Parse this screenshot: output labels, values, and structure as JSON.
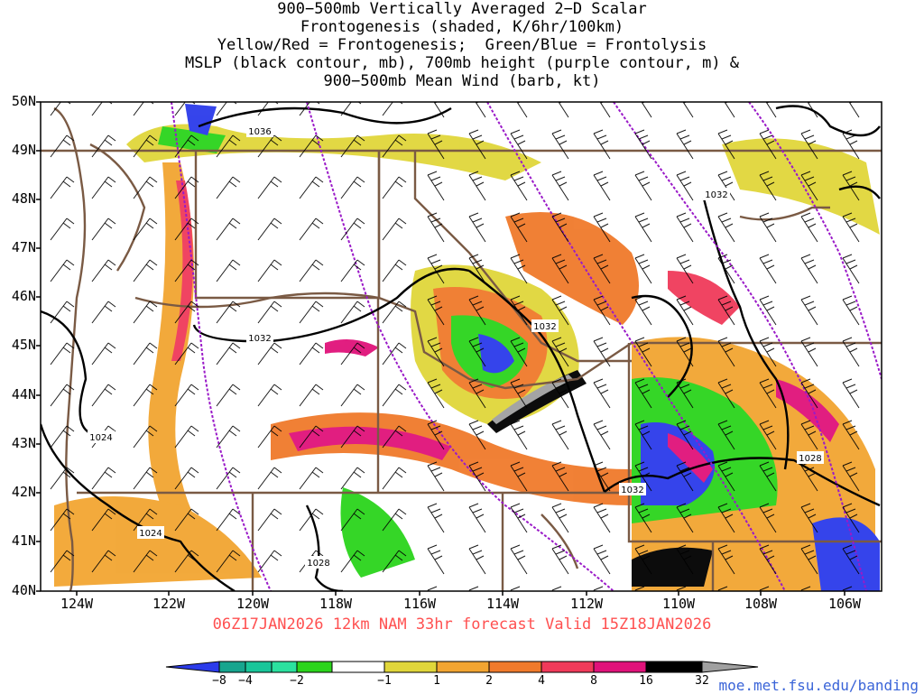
{
  "title": {
    "lines": [
      "900−500mb Vertically Averaged 2−D Scalar",
      "Frontogenesis (shaded, K/6hr/100km)",
      "Yellow/Red = Frontogenesis;  Green/Blue = Frontolysis",
      "MSLP (black contour, mb), 700mb height (purple contour, m) &",
      "900−500mb Mean Wind (barb, kt)"
    ]
  },
  "axes": {
    "lat_labels": [
      "50N",
      "49N",
      "48N",
      "47N",
      "46N",
      "45N",
      "44N",
      "43N",
      "42N",
      "41N",
      "40N"
    ],
    "lon_labels": [
      "124W",
      "122W",
      "120W",
      "118W",
      "116W",
      "114W",
      "112W",
      "110W",
      "108W",
      "106W"
    ]
  },
  "contour_labels": {
    "mslp": [
      "1036",
      "1032",
      "1032",
      "1032",
      "1032",
      "1024",
      "1024",
      "1028",
      "1028"
    ]
  },
  "valid_line": "06Z17JAN2026 12km NAM 33hr forecast Valid 15Z18JAN2026",
  "colorbar": {
    "tick_labels": [
      "−8",
      "−4",
      "−2",
      "−1",
      "1",
      "2",
      "4",
      "8",
      "16",
      "32"
    ],
    "colors": [
      "#2b3bea",
      "#17a58e",
      "#19c69a",
      "#2be19f",
      "#2bd41c",
      "#ffffff",
      "#e0d63a",
      "#f2a531",
      "#f07a2b",
      "#f03a5a",
      "#e0127a",
      "#000000",
      "#a0a0a0"
    ]
  },
  "colors": {
    "state_borders": "#7a5a44",
    "mslp_contour": "#000000",
    "height_contour": "#9a1ac8",
    "barbs": "#000000"
  },
  "footer": {
    "url": "moe.met.fsu.edu/banding"
  }
}
